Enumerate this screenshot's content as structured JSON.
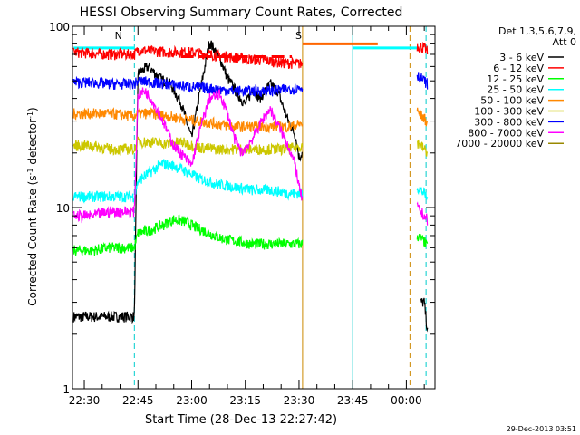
{
  "chart_data": {
    "type": "line",
    "title": "HESSI Observing Summary Count Rates, Corrected",
    "xlabel": "Start Time (28-Dec-13 22:27:42)",
    "ylabel_main": "Corrected Count Rate (s",
    "ylabel_sup": "-1",
    "ylabel_rest": " detector",
    "ylabel_end": ")",
    "y_scale": "log",
    "ylim": [
      1,
      100
    ],
    "xlim": [
      "22:27",
      "00:08"
    ],
    "x_ticks": [
      {
        "label": "22:30",
        "min": 3
      },
      {
        "label": "22:45",
        "min": 18
      },
      {
        "label": "23:00",
        "min": 33
      },
      {
        "label": "23:15",
        "min": 48
      },
      {
        "label": "23:30",
        "min": 63
      },
      {
        "label": "23:45",
        "min": 78
      },
      {
        "label": "00:00",
        "min": 93
      }
    ],
    "y_tick_labels": [
      {
        "label": "1",
        "value": 1
      },
      {
        "label": "10",
        "value": 10
      },
      {
        "label": "100",
        "value": 100
      }
    ],
    "timestamp": "29-Dec-2013 03:51",
    "legend": {
      "position": "right",
      "header1": "Det 1,3,5,6,7,9,",
      "header2": "Att 0"
    },
    "series": [
      {
        "name": "3 - 6 keV",
        "color": "#000000",
        "points": [
          [
            0,
            2.5
          ],
          [
            5,
            2.5
          ],
          [
            10,
            2.5
          ],
          [
            17,
            2.5
          ],
          [
            18,
            55
          ],
          [
            21,
            60
          ],
          [
            24,
            52
          ],
          [
            27,
            48
          ],
          [
            30,
            38
          ],
          [
            33,
            24
          ],
          [
            35,
            40
          ],
          [
            38,
            82
          ],
          [
            41,
            66
          ],
          [
            43,
            52
          ],
          [
            46,
            42
          ],
          [
            48,
            37
          ],
          [
            50,
            45
          ],
          [
            52,
            40
          ],
          [
            55,
            48
          ],
          [
            57,
            44
          ],
          [
            60,
            30
          ],
          [
            62,
            25
          ],
          [
            63,
            19
          ],
          [
            64,
            20
          ],
          [
            97,
            3
          ],
          [
            98,
            3
          ],
          [
            99,
            2
          ]
        ]
      },
      {
        "name": "6 - 12 keV",
        "color": "#ff0000",
        "points": [
          [
            0,
            72
          ],
          [
            5,
            71
          ],
          [
            10,
            70
          ],
          [
            17,
            70
          ],
          [
            18,
            74
          ],
          [
            22,
            73
          ],
          [
            27,
            72
          ],
          [
            33,
            72
          ],
          [
            38,
            70
          ],
          [
            43,
            68
          ],
          [
            48,
            66
          ],
          [
            53,
            65
          ],
          [
            58,
            63
          ],
          [
            64,
            62
          ],
          [
            96,
            78
          ],
          [
            98,
            76
          ],
          [
            99,
            72
          ]
        ]
      },
      {
        "name": "12 - 25 keV",
        "color": "#00ff00",
        "points": [
          [
            0,
            5.8
          ],
          [
            5,
            5.8
          ],
          [
            10,
            6.0
          ],
          [
            17,
            6.0
          ],
          [
            18,
            7.2
          ],
          [
            22,
            7.6
          ],
          [
            25,
            8.0
          ],
          [
            28,
            8.6
          ],
          [
            31,
            8.4
          ],
          [
            34,
            7.8
          ],
          [
            38,
            7.2
          ],
          [
            42,
            6.7
          ],
          [
            46,
            6.5
          ],
          [
            50,
            6.3
          ],
          [
            55,
            6.3
          ],
          [
            60,
            6.3
          ],
          [
            64,
            6.3
          ],
          [
            96,
            7.0
          ],
          [
            98,
            6.5
          ],
          [
            99,
            6.0
          ]
        ]
      },
      {
        "name": "25 - 50 keV",
        "color": "#00ffff",
        "points": [
          [
            0,
            11.5
          ],
          [
            5,
            11.5
          ],
          [
            10,
            11.5
          ],
          [
            17,
            11.5
          ],
          [
            18,
            14
          ],
          [
            21,
            15.5
          ],
          [
            25,
            17.5
          ],
          [
            28,
            17
          ],
          [
            31,
            16
          ],
          [
            35,
            14.5
          ],
          [
            40,
            13.5
          ],
          [
            45,
            13
          ],
          [
            50,
            12.5
          ],
          [
            55,
            12.5
          ],
          [
            60,
            12
          ],
          [
            64,
            12
          ],
          [
            96,
            13
          ],
          [
            98,
            12
          ],
          [
            99,
            11
          ]
        ]
      },
      {
        "name": "50 - 100 keV",
        "color": "#ff8800",
        "points": [
          [
            0,
            33
          ],
          [
            5,
            33
          ],
          [
            10,
            33
          ],
          [
            17,
            32
          ],
          [
            18,
            33
          ],
          [
            22,
            33
          ],
          [
            26,
            32
          ],
          [
            30,
            31
          ],
          [
            35,
            30
          ],
          [
            40,
            29
          ],
          [
            45,
            28
          ],
          [
            50,
            28
          ],
          [
            55,
            28
          ],
          [
            60,
            28
          ],
          [
            64,
            29
          ],
          [
            96,
            34
          ],
          [
            98,
            31
          ],
          [
            99,
            29
          ]
        ]
      },
      {
        "name": "100 - 300 keV",
        "color": "#ccc700",
        "points": [
          [
            0,
            22
          ],
          [
            5,
            22
          ],
          [
            10,
            21
          ],
          [
            17,
            21
          ],
          [
            18,
            23
          ],
          [
            22,
            23
          ],
          [
            26,
            22.5
          ],
          [
            30,
            23
          ],
          [
            35,
            21.5
          ],
          [
            40,
            21
          ],
          [
            45,
            21
          ],
          [
            50,
            21
          ],
          [
            55,
            21
          ],
          [
            60,
            21
          ],
          [
            64,
            22
          ],
          [
            96,
            23
          ],
          [
            98,
            21
          ],
          [
            99,
            20
          ]
        ]
      },
      {
        "name": "300 - 800 keV",
        "color": "#0000ff",
        "points": [
          [
            0,
            49
          ],
          [
            5,
            49
          ],
          [
            10,
            48
          ],
          [
            17,
            48
          ],
          [
            18,
            50
          ],
          [
            22,
            49
          ],
          [
            26,
            48
          ],
          [
            30,
            47
          ],
          [
            35,
            46
          ],
          [
            40,
            45
          ],
          [
            45,
            44
          ],
          [
            50,
            44
          ],
          [
            55,
            44
          ],
          [
            60,
            45
          ],
          [
            64,
            46
          ],
          [
            96,
            54
          ],
          [
            98,
            50
          ],
          [
            99,
            48
          ]
        ]
      },
      {
        "name": "800 - 7000 keV",
        "color": "#ff00ff",
        "points": [
          [
            0,
            9.0
          ],
          [
            5,
            9.0
          ],
          [
            10,
            9.5
          ],
          [
            17,
            9.5
          ],
          [
            18,
            42
          ],
          [
            20,
            44
          ],
          [
            22,
            39
          ],
          [
            25,
            30
          ],
          [
            28,
            22
          ],
          [
            31,
            19
          ],
          [
            33,
            17
          ],
          [
            34,
            21
          ],
          [
            36,
            30
          ],
          [
            38,
            40
          ],
          [
            41,
            42
          ],
          [
            43,
            33
          ],
          [
            45,
            24
          ],
          [
            47,
            20
          ],
          [
            50,
            24
          ],
          [
            53,
            31
          ],
          [
            55,
            35
          ],
          [
            57,
            29
          ],
          [
            60,
            22
          ],
          [
            62,
            17
          ],
          [
            63,
            13
          ],
          [
            64,
            11
          ],
          [
            96,
            10
          ],
          [
            98,
            9
          ],
          [
            99,
            8.5
          ]
        ]
      },
      {
        "name": "7000 - 20000 keV",
        "color": "#998800",
        "points": []
      }
    ],
    "segments": [
      {
        "color": "#00ffff",
        "y": 76,
        "x": [
          0,
          17
        ]
      },
      {
        "color": "#00ffff",
        "y": 76,
        "x": [
          78,
          96
        ]
      },
      {
        "color": "#ff6600",
        "y": 80,
        "x": [
          64,
          85
        ]
      },
      {
        "color": "#ff0000",
        "y": 68,
        "x": [
          30,
          61
        ],
        "dash": true
      }
    ],
    "vlines": [
      {
        "color": "#00cccc",
        "x": 17,
        "dash": true
      },
      {
        "color": "#cc8800",
        "x": 64,
        "dash": false
      },
      {
        "color": "#00cccc",
        "x": 78,
        "dash": false
      },
      {
        "color": "#cc8800",
        "x": 94,
        "dash": true
      },
      {
        "color": "#00cccc",
        "x": 98.5,
        "dash": true
      }
    ],
    "flags": [
      {
        "text": "S",
        "x": 62,
        "color": "#ff8800"
      },
      {
        "text": "N",
        "x": 11.5,
        "color": "#ff0000"
      }
    ]
  }
}
